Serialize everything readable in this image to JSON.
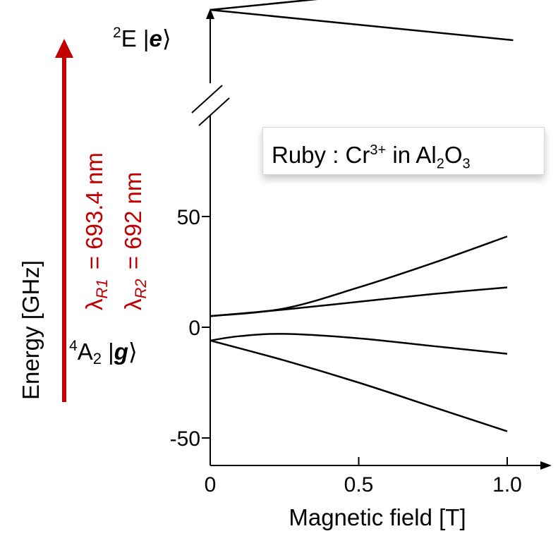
{
  "chart_data": {
    "type": "line",
    "title": "",
    "xlabel": "Magnetic field [T]",
    "ylabel": "Energy [GHz]",
    "xlim": [
      0,
      1.05
    ],
    "ylim": [
      -60,
      60
    ],
    "x_ticks": [
      "0",
      "0.5",
      "1.0"
    ],
    "y_ticks": [
      "50",
      "0",
      "-50"
    ],
    "ground_state": {
      "label": "4A2 |g⟩",
      "label_parts": {
        "sup": "4",
        "main": "A",
        "sub": "2",
        "ket": "g"
      },
      "series": [
        {
          "x": [
            0,
            0.25,
            0.5,
            0.75,
            1.0
          ],
          "values": [
            5,
            8.5,
            18,
            29,
            41
          ]
        },
        {
          "x": [
            0,
            0.25,
            0.5,
            0.75,
            1.0
          ],
          "values": [
            5,
            8,
            11.5,
            15,
            18
          ]
        },
        {
          "x": [
            0,
            0.1,
            0.25,
            0.5,
            0.75,
            1.0
          ],
          "values": [
            -6,
            -4,
            -3,
            -5,
            -8.5,
            -12
          ]
        },
        {
          "x": [
            0,
            0.25,
            0.5,
            0.75,
            1.0
          ],
          "values": [
            -6,
            -15,
            -25,
            -36,
            -47
          ]
        }
      ]
    },
    "excited_state": {
      "label": "2E |e⟩",
      "label_parts": {
        "sup": "2",
        "main": "E",
        "ket": "e"
      },
      "series": [
        {
          "x": [
            0,
            1.02
          ],
          "values": [
            1,
            1.95
          ]
        },
        {
          "x": [
            0,
            1.02
          ],
          "values": [
            1,
            0.05
          ]
        }
      ]
    },
    "transitions": [
      {
        "symbol": "λ",
        "subscript": "R1",
        "value": "693.4 nm",
        "text": "λR1 = 693.4 nm"
      },
      {
        "symbol": "λ",
        "subscript": "R2",
        "value": "692 nm",
        "text": "λR2 = 692 nm"
      }
    ],
    "annotation": {
      "text": "Ruby : Cr3+ in Al2O3",
      "parts": [
        "Ruby : Cr",
        "3+",
        " in Al",
        "2",
        "O",
        "3"
      ]
    },
    "axis_break": true,
    "grid": false,
    "colors": {
      "transition_arrow": "#c00000",
      "lines": "#000000"
    }
  }
}
